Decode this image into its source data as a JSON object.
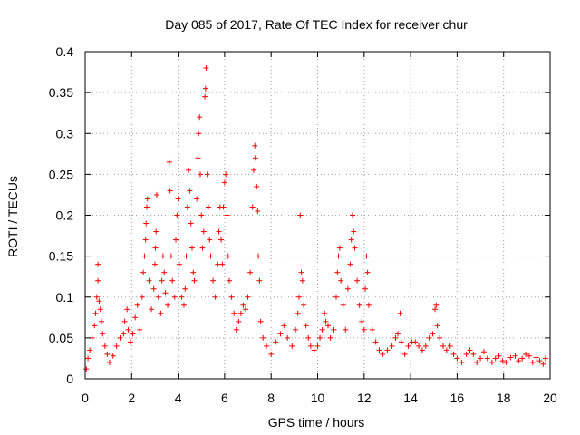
{
  "chart_data": {
    "type": "scatter",
    "title": "Day 085 of 2017, Rate Of TEC Index for receiver chur",
    "xlabel": "GPS time / hours",
    "ylabel": "ROTI / TECUs",
    "xlim": [
      0,
      20
    ],
    "ylim": [
      0,
      0.4
    ],
    "x_ticks": [
      0,
      2,
      4,
      6,
      8,
      10,
      12,
      14,
      16,
      18,
      20
    ],
    "x_tick_labels": [
      "0",
      "2",
      "4",
      "6",
      "8",
      "10",
      "12",
      "14",
      "16",
      "18",
      "20"
    ],
    "y_ticks": [
      0,
      0.05,
      0.1,
      0.15,
      0.2,
      0.25,
      0.3,
      0.35,
      0.4
    ],
    "y_tick_labels": [
      "0",
      "0.05",
      "0.1",
      "0.15",
      "0.2",
      "0.25",
      "0.3",
      "0.35",
      "0.4"
    ],
    "grid": true,
    "marker": "+",
    "color": "#ff0000",
    "points": [
      [
        0.05,
        0.012
      ],
      [
        0.12,
        0.025
      ],
      [
        0.2,
        0.035
      ],
      [
        0.3,
        0.05
      ],
      [
        0.4,
        0.065
      ],
      [
        0.45,
        0.08
      ],
      [
        0.5,
        0.1
      ],
      [
        0.55,
        0.12
      ],
      [
        0.55,
        0.14
      ],
      [
        0.6,
        0.095
      ],
      [
        0.65,
        0.085
      ],
      [
        0.7,
        0.07
      ],
      [
        0.75,
        0.055
      ],
      [
        0.85,
        0.04
      ],
      [
        0.95,
        0.03
      ],
      [
        1.05,
        0.02
      ],
      [
        1.2,
        0.028
      ],
      [
        1.35,
        0.04
      ],
      [
        1.5,
        0.05
      ],
      [
        1.65,
        0.055
      ],
      [
        1.7,
        0.07
      ],
      [
        1.8,
        0.085
      ],
      [
        1.85,
        0.06
      ],
      [
        1.95,
        0.045
      ],
      [
        2.05,
        0.055
      ],
      [
        2.15,
        0.075
      ],
      [
        2.25,
        0.09
      ],
      [
        2.35,
        0.06
      ],
      [
        2.45,
        0.1
      ],
      [
        2.5,
        0.13
      ],
      [
        2.55,
        0.15
      ],
      [
        2.6,
        0.17
      ],
      [
        2.62,
        0.19
      ],
      [
        2.65,
        0.21
      ],
      [
        2.68,
        0.22
      ],
      [
        2.75,
        0.12
      ],
      [
        2.85,
        0.085
      ],
      [
        2.95,
        0.11
      ],
      [
        3.0,
        0.14
      ],
      [
        3.02,
        0.16
      ],
      [
        3.05,
        0.18
      ],
      [
        3.08,
        0.225
      ],
      [
        3.15,
        0.1
      ],
      [
        3.25,
        0.08
      ],
      [
        3.3,
        0.12
      ],
      [
        3.35,
        0.15
      ],
      [
        3.4,
        0.13
      ],
      [
        3.45,
        0.105
      ],
      [
        3.55,
        0.09
      ],
      [
        3.62,
        0.265
      ],
      [
        3.65,
        0.23
      ],
      [
        3.7,
        0.15
      ],
      [
        3.75,
        0.12
      ],
      [
        3.85,
        0.1
      ],
      [
        3.9,
        0.17
      ],
      [
        3.95,
        0.2
      ],
      [
        4.0,
        0.22
      ],
      [
        4.05,
        0.14
      ],
      [
        4.15,
        0.1
      ],
      [
        4.25,
        0.09
      ],
      [
        4.3,
        0.11
      ],
      [
        4.35,
        0.15
      ],
      [
        4.4,
        0.21
      ],
      [
        4.45,
        0.255
      ],
      [
        4.5,
        0.23
      ],
      [
        4.55,
        0.19
      ],
      [
        4.6,
        0.16
      ],
      [
        4.65,
        0.13
      ],
      [
        4.7,
        0.12
      ],
      [
        4.8,
        0.22
      ],
      [
        4.85,
        0.27
      ],
      [
        4.88,
        0.3
      ],
      [
        4.92,
        0.32
      ],
      [
        4.95,
        0.25
      ],
      [
        5.0,
        0.2
      ],
      [
        5.05,
        0.16
      ],
      [
        5.1,
        0.18
      ],
      [
        5.15,
        0.345
      ],
      [
        5.18,
        0.355
      ],
      [
        5.2,
        0.38
      ],
      [
        5.25,
        0.25
      ],
      [
        5.3,
        0.21
      ],
      [
        5.35,
        0.17
      ],
      [
        5.4,
        0.15
      ],
      [
        5.5,
        0.12
      ],
      [
        5.6,
        0.1
      ],
      [
        5.7,
        0.14
      ],
      [
        5.75,
        0.18
      ],
      [
        5.8,
        0.21
      ],
      [
        5.85,
        0.17
      ],
      [
        5.9,
        0.14
      ],
      [
        5.95,
        0.21
      ],
      [
        6.0,
        0.24
      ],
      [
        6.05,
        0.25
      ],
      [
        6.1,
        0.2
      ],
      [
        6.15,
        0.15
      ],
      [
        6.2,
        0.12
      ],
      [
        6.3,
        0.1
      ],
      [
        6.4,
        0.08
      ],
      [
        6.5,
        0.06
      ],
      [
        6.6,
        0.07
      ],
      [
        6.7,
        0.08
      ],
      [
        6.8,
        0.09
      ],
      [
        6.9,
        0.085
      ],
      [
        7.0,
        0.1
      ],
      [
        7.1,
        0.13
      ],
      [
        7.2,
        0.21
      ],
      [
        7.25,
        0.255
      ],
      [
        7.3,
        0.285
      ],
      [
        7.32,
        0.27
      ],
      [
        7.38,
        0.235
      ],
      [
        7.42,
        0.205
      ],
      [
        7.45,
        0.15
      ],
      [
        7.5,
        0.12
      ],
      [
        7.55,
        0.07
      ],
      [
        7.65,
        0.05
      ],
      [
        7.8,
        0.04
      ],
      [
        8.0,
        0.03
      ],
      [
        8.2,
        0.045
      ],
      [
        8.4,
        0.055
      ],
      [
        8.55,
        0.065
      ],
      [
        8.7,
        0.05
      ],
      [
        8.9,
        0.04
      ],
      [
        9.05,
        0.06
      ],
      [
        9.15,
        0.08
      ],
      [
        9.2,
        0.1
      ],
      [
        9.25,
        0.2
      ],
      [
        9.3,
        0.13
      ],
      [
        9.35,
        0.12
      ],
      [
        9.4,
        0.09
      ],
      [
        9.5,
        0.065
      ],
      [
        9.6,
        0.05
      ],
      [
        9.7,
        0.04
      ],
      [
        9.85,
        0.035
      ],
      [
        10.0,
        0.04
      ],
      [
        10.1,
        0.05
      ],
      [
        10.2,
        0.06
      ],
      [
        10.3,
        0.08
      ],
      [
        10.35,
        0.07
      ],
      [
        10.45,
        0.065
      ],
      [
        10.55,
        0.05
      ],
      [
        10.7,
        0.06
      ],
      [
        10.8,
        0.1
      ],
      [
        10.85,
        0.13
      ],
      [
        10.9,
        0.15
      ],
      [
        10.95,
        0.16
      ],
      [
        11.0,
        0.12
      ],
      [
        11.1,
        0.09
      ],
      [
        11.2,
        0.06
      ],
      [
        11.3,
        0.11
      ],
      [
        11.4,
        0.14
      ],
      [
        11.45,
        0.17
      ],
      [
        11.5,
        0.2
      ],
      [
        11.55,
        0.18
      ],
      [
        11.6,
        0.16
      ],
      [
        11.7,
        0.12
      ],
      [
        11.8,
        0.09
      ],
      [
        11.9,
        0.07
      ],
      [
        12.0,
        0.06
      ],
      [
        12.05,
        0.11
      ],
      [
        12.1,
        0.15
      ],
      [
        12.15,
        0.13
      ],
      [
        12.2,
        0.09
      ],
      [
        12.35,
        0.06
      ],
      [
        12.5,
        0.045
      ],
      [
        12.65,
        0.035
      ],
      [
        12.8,
        0.03
      ],
      [
        13.0,
        0.035
      ],
      [
        13.2,
        0.04
      ],
      [
        13.35,
        0.05
      ],
      [
        13.45,
        0.055
      ],
      [
        13.55,
        0.08
      ],
      [
        13.6,
        0.045
      ],
      [
        13.75,
        0.03
      ],
      [
        13.9,
        0.04
      ],
      [
        14.05,
        0.045
      ],
      [
        14.2,
        0.045
      ],
      [
        14.35,
        0.04
      ],
      [
        14.5,
        0.035
      ],
      [
        14.65,
        0.04
      ],
      [
        14.8,
        0.05
      ],
      [
        14.95,
        0.055
      ],
      [
        15.05,
        0.085
      ],
      [
        15.1,
        0.09
      ],
      [
        15.15,
        0.065
      ],
      [
        15.25,
        0.05
      ],
      [
        15.4,
        0.04
      ],
      [
        15.55,
        0.035
      ],
      [
        15.7,
        0.04
      ],
      [
        15.85,
        0.03
      ],
      [
        16.0,
        0.025
      ],
      [
        16.2,
        0.02
      ],
      [
        16.4,
        0.03
      ],
      [
        16.55,
        0.035
      ],
      [
        16.7,
        0.03
      ],
      [
        16.85,
        0.02
      ],
      [
        17.0,
        0.025
      ],
      [
        17.15,
        0.033
      ],
      [
        17.3,
        0.025
      ],
      [
        17.5,
        0.02
      ],
      [
        17.65,
        0.025
      ],
      [
        17.8,
        0.028
      ],
      [
        17.95,
        0.022
      ],
      [
        18.1,
        0.02
      ],
      [
        18.3,
        0.026
      ],
      [
        18.5,
        0.028
      ],
      [
        18.65,
        0.022
      ],
      [
        18.8,
        0.025
      ],
      [
        18.95,
        0.03
      ],
      [
        19.1,
        0.028
      ],
      [
        19.25,
        0.02
      ],
      [
        19.4,
        0.026
      ],
      [
        19.55,
        0.022
      ],
      [
        19.7,
        0.018
      ],
      [
        19.8,
        0.025
      ]
    ]
  }
}
